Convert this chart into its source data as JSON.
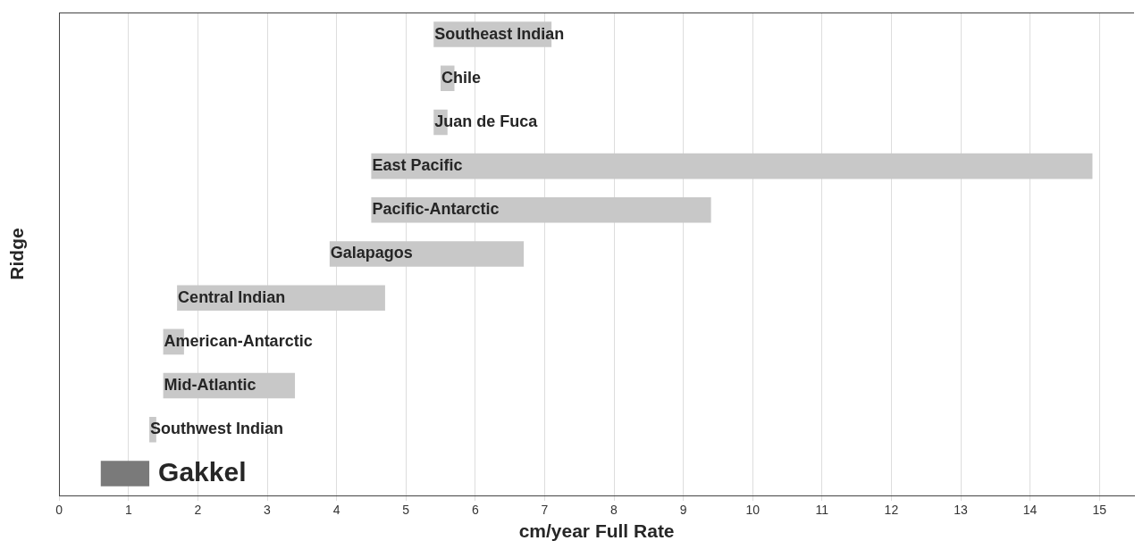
{
  "chart_data": {
    "type": "bar",
    "orientation": "horizontal",
    "xlabel": "cm/year Full Rate",
    "ylabel": "Ridge",
    "categories": [
      "Southeast Indian",
      "Chile",
      "Juan de Fuca",
      "East Pacific",
      "Pacific-Antarctic",
      "Galapagos",
      "Central Indian",
      "American-Antarctic",
      "Mid-Atlantic",
      "Southwest Indian",
      "Gakkel"
    ],
    "base": [
      5.4,
      5.5,
      5.4,
      4.5,
      4.5,
      3.9,
      1.7,
      1.5,
      1.5,
      1.3,
      0.6
    ],
    "values": [
      1.7,
      0.2,
      0.2,
      10.4,
      4.9,
      2.8,
      3.0,
      0.3,
      1.9,
      0.1,
      0.7
    ],
    "colors": [
      "#c8c8c8",
      "#c8c8c8",
      "#c8c8c8",
      "#c8c8c8",
      "#c8c8c8",
      "#c8c8c8",
      "#c8c8c8",
      "#c8c8c8",
      "#c8c8c8",
      "#c8c8c8",
      "#7a7a7a"
    ],
    "xlim": [
      0,
      15.5
    ],
    "xticks": [
      0,
      1,
      2,
      3,
      4,
      5,
      6,
      7,
      8,
      9,
      10,
      11,
      12,
      13,
      14,
      15
    ],
    "grid": "x",
    "tick_labels": "x",
    "legend": false
  }
}
